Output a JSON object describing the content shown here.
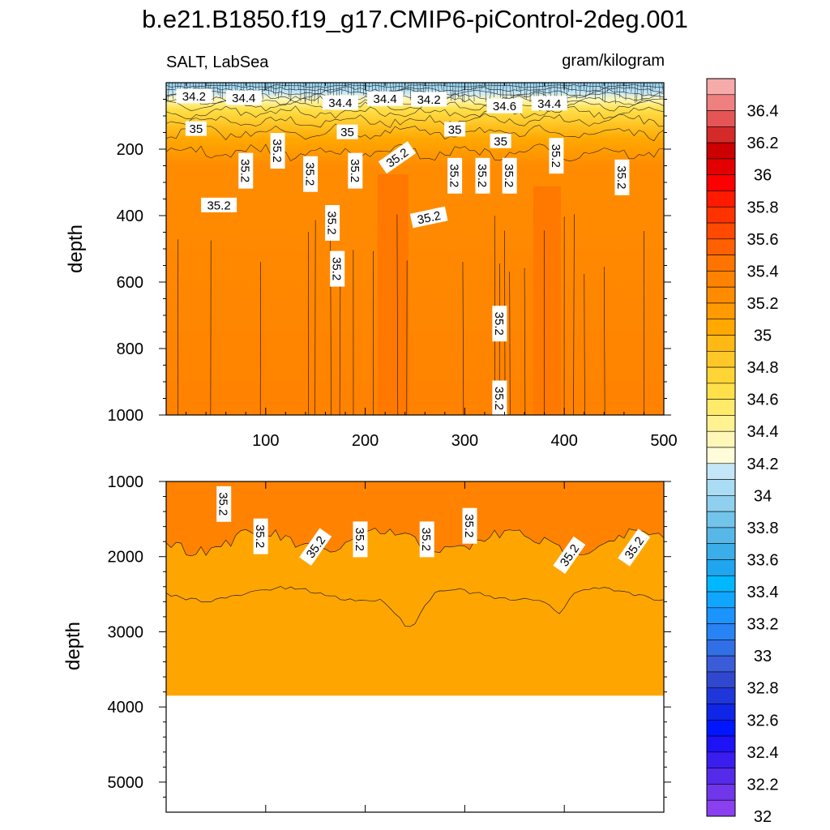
{
  "title": "b.e21.B1850.f19_g17.CMIP6-piControl-2deg.001",
  "chart_data": [
    {
      "type": "heatmap",
      "panel": "upper",
      "left_label": "SALT, LabSea",
      "right_label": "gram/kilogram",
      "ylabel": "depth",
      "xlim": [
        0,
        500
      ],
      "ylim": [
        1000,
        0
      ],
      "x_ticks": [
        100,
        200,
        300,
        400,
        500
      ],
      "y_ticks": [
        200,
        400,
        600,
        800,
        1000
      ],
      "contour_labels": [
        {
          "text": "34.2",
          "x": 28,
          "y": 40
        },
        {
          "text": "34.4",
          "x": 78,
          "y": 45
        },
        {
          "text": "34.4",
          "x": 175,
          "y": 60
        },
        {
          "text": "34.4",
          "x": 220,
          "y": 48
        },
        {
          "text": "34.2",
          "x": 264,
          "y": 50
        },
        {
          "text": "34.6",
          "x": 340,
          "y": 70
        },
        {
          "text": "34.4",
          "x": 385,
          "y": 62
        },
        {
          "text": "35",
          "x": 30,
          "y": 138
        },
        {
          "text": "35",
          "x": 182,
          "y": 148
        },
        {
          "text": "35",
          "x": 290,
          "y": 140
        },
        {
          "text": "35",
          "x": 336,
          "y": 175
        },
        {
          "text": "35.2",
          "x": 112,
          "y": 205
        },
        {
          "text": "35.2",
          "x": 80,
          "y": 265
        },
        {
          "text": "35.2",
          "x": 145,
          "y": 275
        },
        {
          "text": "35.2",
          "x": 190,
          "y": 265
        },
        {
          "text": "35.2",
          "x": 232,
          "y": 225
        },
        {
          "text": "35.2",
          "x": 290,
          "y": 280
        },
        {
          "text": "35.2",
          "x": 318,
          "y": 280
        },
        {
          "text": "35.2",
          "x": 345,
          "y": 280
        },
        {
          "text": "35.2",
          "x": 392,
          "y": 220
        },
        {
          "text": "35.2",
          "x": 458,
          "y": 285
        },
        {
          "text": "35.2",
          "x": 53,
          "y": 368
        },
        {
          "text": "35.2",
          "x": 167,
          "y": 422
        },
        {
          "text": "35.2",
          "x": 264,
          "y": 405
        },
        {
          "text": "35.2",
          "x": 172,
          "y": 560
        },
        {
          "text": "35.2",
          "x": 335,
          "y": 725
        },
        {
          "text": "35.2",
          "x": 335,
          "y": 950
        }
      ]
    },
    {
      "type": "heatmap",
      "panel": "lower",
      "ylabel": "depth",
      "xlim": [
        0,
        500
      ],
      "ylim": [
        5400,
        1000
      ],
      "y_ticks": [
        1000,
        2000,
        3000,
        4000,
        5000
      ],
      "bottom_depth": 3850,
      "contour_labels": [
        {
          "text": "35.2",
          "x": 58,
          "y": 1300
        },
        {
          "text": "35.2",
          "x": 95,
          "y": 1730
        },
        {
          "text": "35.2",
          "x": 150,
          "y": 1870
        },
        {
          "text": "35.2",
          "x": 195,
          "y": 1770
        },
        {
          "text": "35.2",
          "x": 262,
          "y": 1770
        },
        {
          "text": "35.2",
          "x": 305,
          "y": 1590
        },
        {
          "text": "35.2",
          "x": 405,
          "y": 1980
        },
        {
          "text": "35.2",
          "x": 470,
          "y": 1880
        }
      ]
    },
    {
      "type": "colorbar",
      "labels": [
        "36.4",
        "36.2",
        "36",
        "35.8",
        "35.6",
        "35.4",
        "35.2",
        "35",
        "34.8",
        "34.6",
        "34.4",
        "34.2",
        "34",
        "33.8",
        "33.6",
        "33.4",
        "33.2",
        "33",
        "32.8",
        "32.6",
        "32.4",
        "32.2",
        "32"
      ],
      "colors": [
        "#f6aaaa",
        "#ee8080",
        "#e65555",
        "#d42a2a",
        "#cc0000",
        "#e30000",
        "#ff0000",
        "#ff1a00",
        "#ff3300",
        "#ff4a00",
        "#ff6000",
        "#ff7400",
        "#ff8200",
        "#ff8c00",
        "#ff9a00",
        "#ffa800",
        "#ffb914",
        "#ffc828",
        "#ffd535",
        "#ffe04a",
        "#ffea6a",
        "#fff291",
        "#fff7b8",
        "#fffcd9",
        "#c4e7f7",
        "#aadcf3",
        "#90d0ef",
        "#73c4eb",
        "#57b8e7",
        "#3aaee8",
        "#1fa6ef",
        "#00b8ff",
        "#10a6ff",
        "#1c94ff",
        "#2883f5",
        "#316fe6",
        "#3b5cd9",
        "#3048d0",
        "#1f36db",
        "#0f25e8",
        "#0016ff",
        "#1e12f7",
        "#3a1ef0",
        "#552aeb",
        "#6f36ea",
        "#8a3ff0"
      ]
    }
  ]
}
